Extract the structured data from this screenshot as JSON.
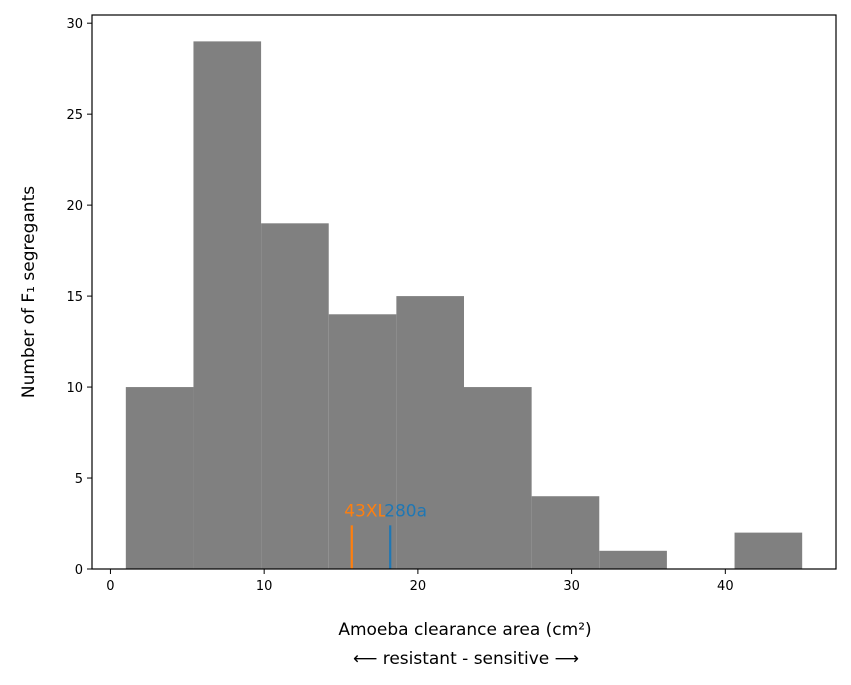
{
  "chart_data": {
    "type": "bar",
    "bins": [
      {
        "start": 1.0,
        "end": 5.4,
        "count": 10
      },
      {
        "start": 5.4,
        "end": 9.8,
        "count": 29
      },
      {
        "start": 9.8,
        "end": 14.2,
        "count": 19
      },
      {
        "start": 14.2,
        "end": 18.6,
        "count": 14
      },
      {
        "start": 18.6,
        "end": 23.0,
        "count": 15
      },
      {
        "start": 23.0,
        "end": 27.4,
        "count": 10
      },
      {
        "start": 27.4,
        "end": 31.8,
        "count": 4
      },
      {
        "start": 31.8,
        "end": 36.2,
        "count": 1
      },
      {
        "start": 36.2,
        "end": 40.6,
        "count": 0
      },
      {
        "start": 40.6,
        "end": 45.0,
        "count": 2
      }
    ],
    "bar_color": "#808080",
    "xlabel": "Amoeba clearance area (cm²)",
    "xlabel_sub": "⟵ resistant - sensitive ⟶",
    "ylabel": "Number of F₁ segregants",
    "xlim": [
      -1.2,
      47.2
    ],
    "ylim": [
      0,
      30.45
    ],
    "xticks": [
      0,
      10,
      20,
      30,
      40
    ],
    "yticks": [
      0,
      5,
      10,
      15,
      20,
      25,
      30
    ],
    "markers": [
      {
        "label": "43XL",
        "x": 15.7,
        "height": 2.4,
        "color": "#ff7f0e",
        "label_x": 16.6
      },
      {
        "label": "280a",
        "x": 18.2,
        "height": 2.4,
        "color": "#1f77b4",
        "label_x": 19.2
      }
    ]
  }
}
